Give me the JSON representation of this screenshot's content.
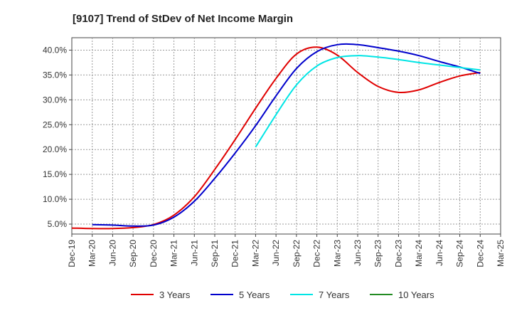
{
  "chart_data": {
    "type": "line",
    "title": "[9107]  Trend of StDev of Net Income Margin",
    "xlabel": "",
    "ylabel": "",
    "x_ticks": [
      "Dec-19",
      "Mar-20",
      "Jun-20",
      "Sep-20",
      "Dec-20",
      "Mar-21",
      "Jun-21",
      "Sep-21",
      "Dec-21",
      "Mar-22",
      "Jun-22",
      "Sep-22",
      "Dec-22",
      "Mar-23",
      "Jun-23",
      "Sep-23",
      "Dec-23",
      "Mar-24",
      "Jun-24",
      "Sep-24",
      "Dec-24",
      "Mar-25"
    ],
    "y_ticks": [
      "5.0%",
      "10.0%",
      "15.0%",
      "20.0%",
      "25.0%",
      "30.0%",
      "35.0%",
      "40.0%"
    ],
    "ylim": [
      3.0,
      42.5
    ],
    "grid": true,
    "legend_position": "bottom",
    "series": [
      {
        "name": "3 Years",
        "color": "#e00000",
        "points": [
          [
            "Dec-19",
            4.2
          ],
          [
            "Mar-20",
            4.1
          ],
          [
            "Jun-20",
            4.1
          ],
          [
            "Sep-20",
            4.3
          ],
          [
            "Dec-20",
            4.9
          ],
          [
            "Mar-21",
            6.8
          ],
          [
            "Jun-21",
            10.5
          ],
          [
            "Sep-21",
            16.0
          ],
          [
            "Dec-21",
            22.0
          ],
          [
            "Mar-22",
            28.3
          ],
          [
            "Jun-22",
            34.3
          ],
          [
            "Sep-22",
            39.2
          ],
          [
            "Dec-22",
            40.6
          ],
          [
            "Mar-23",
            39.0
          ],
          [
            "Jun-23",
            35.5
          ],
          [
            "Sep-23",
            32.7
          ],
          [
            "Dec-23",
            31.5
          ],
          [
            "Mar-24",
            32.0
          ],
          [
            "Jun-24",
            33.5
          ],
          [
            "Sep-24",
            34.8
          ],
          [
            "Dec-24",
            35.5
          ]
        ]
      },
      {
        "name": "5 Years",
        "color": "#0000cc",
        "points": [
          [
            "Mar-20",
            4.9
          ],
          [
            "Jun-20",
            4.8
          ],
          [
            "Sep-20",
            4.6
          ],
          [
            "Dec-20",
            4.8
          ],
          [
            "Mar-21",
            6.4
          ],
          [
            "Jun-21",
            9.6
          ],
          [
            "Sep-21",
            14.2
          ],
          [
            "Dec-21",
            19.3
          ],
          [
            "Mar-22",
            24.8
          ],
          [
            "Jun-22",
            30.8
          ],
          [
            "Sep-22",
            36.3
          ],
          [
            "Dec-22",
            39.7
          ],
          [
            "Mar-23",
            41.1
          ],
          [
            "Jun-23",
            41.1
          ],
          [
            "Sep-23",
            40.5
          ],
          [
            "Dec-23",
            39.8
          ],
          [
            "Mar-24",
            38.9
          ],
          [
            "Jun-24",
            37.7
          ],
          [
            "Sep-24",
            36.6
          ],
          [
            "Dec-24",
            35.3
          ]
        ]
      },
      {
        "name": "7 Years",
        "color": "#00e5e5",
        "points": [
          [
            "Mar-22",
            20.5
          ],
          [
            "Jun-22",
            27.0
          ],
          [
            "Sep-22",
            33.0
          ],
          [
            "Dec-22",
            36.8
          ],
          [
            "Mar-23",
            38.5
          ],
          [
            "Jun-23",
            38.9
          ],
          [
            "Sep-23",
            38.6
          ],
          [
            "Dec-23",
            38.1
          ],
          [
            "Mar-24",
            37.5
          ],
          [
            "Jun-24",
            37.0
          ],
          [
            "Sep-24",
            36.5
          ],
          [
            "Dec-24",
            36.0
          ]
        ]
      },
      {
        "name": "10 Years",
        "color": "#228b22",
        "points": []
      }
    ]
  }
}
